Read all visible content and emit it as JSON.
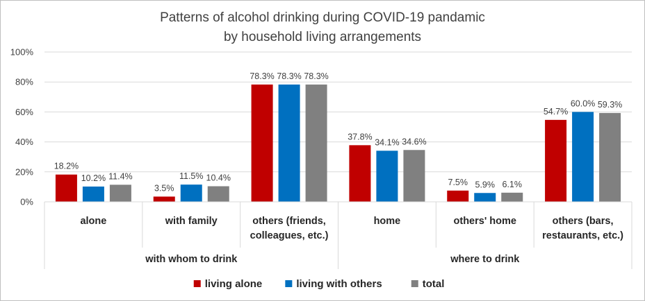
{
  "chart_data": {
    "type": "bar",
    "title": "Patterns of alcohol drinking during COVID-19 pandamic",
    "subtitle": "by household living arrangements",
    "xlabel": "",
    "ylabel": "",
    "ylim": [
      0,
      100
    ],
    "yticks": [
      "0%",
      "20%",
      "40%",
      "60%",
      "80%",
      "100%"
    ],
    "grid": true,
    "legend_position": "bottom",
    "groups": [
      {
        "label": "with whom to drink",
        "categories": [
          [
            "alone"
          ],
          [
            "with family"
          ],
          [
            "others (friends,",
            "colleagues, etc.)"
          ]
        ]
      },
      {
        "label": "where to drink",
        "categories": [
          [
            "home"
          ],
          [
            "others' home"
          ],
          [
            "others (bars,",
            "restaurants, etc.)"
          ]
        ]
      }
    ],
    "series": [
      {
        "name": "living alone",
        "color": "#c00000",
        "values": [
          18.2,
          3.5,
          78.3,
          37.8,
          7.5,
          54.7
        ],
        "labels": [
          "18.2%",
          "3.5%",
          "78.3%",
          "37.8%",
          "7.5%",
          "54.7%"
        ]
      },
      {
        "name": "living with others",
        "color": "#0070c0",
        "values": [
          10.2,
          11.5,
          78.3,
          34.1,
          5.9,
          60.0
        ],
        "labels": [
          "10.2%",
          "11.5%",
          "78.3%",
          "34.1%",
          "5.9%",
          "60.0%"
        ]
      },
      {
        "name": "total",
        "color": "#808080",
        "values": [
          11.4,
          10.4,
          78.3,
          34.6,
          6.1,
          59.3
        ],
        "labels": [
          "11.4%",
          "10.4%",
          "78.3%",
          "34.6%",
          "6.1%",
          "59.3%"
        ]
      }
    ]
  }
}
